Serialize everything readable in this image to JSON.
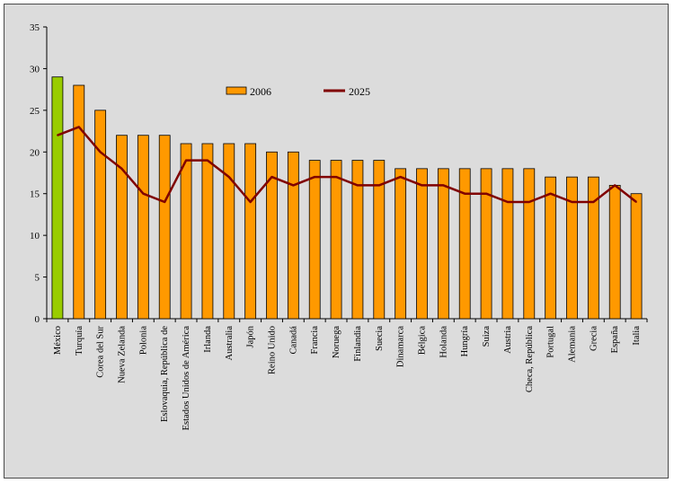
{
  "chart_data": {
    "type": "bar",
    "title": "",
    "xlabel": "",
    "ylabel": "",
    "ylim": [
      0,
      35
    ],
    "ytick_step": 5,
    "grid": false,
    "legend_position": "top-center",
    "categories": [
      "México",
      "Turquía",
      "Corea del Sur",
      "Nueva Zelanda",
      "Polonia",
      "Eslovaquia, República de",
      "Estados Unidos de América",
      "Irlanda",
      "Australia",
      "Japón",
      "Reino Unido",
      "Canadá",
      "Francia",
      "Noruega",
      "Finlandia",
      "Suecia",
      "Dinamarca",
      "Bélgica",
      "Holanda",
      "Hungría",
      "Suiza",
      "Austria",
      "Checa, República",
      "Portugal",
      "Alemania",
      "Grecia",
      "España",
      "Italia"
    ],
    "series": [
      {
        "name": "2006",
        "kind": "bar",
        "color": "#ff9900",
        "highlight_index": 0,
        "highlight_color": "#99cc00",
        "values": [
          29,
          28,
          25,
          22,
          22,
          22,
          21,
          21,
          21,
          21,
          20,
          20,
          19,
          19,
          19,
          19,
          18,
          18,
          18,
          18,
          18,
          18,
          18,
          17,
          17,
          17,
          16,
          15
        ]
      },
      {
        "name": "2025",
        "kind": "line",
        "color": "#800000",
        "values": [
          22,
          23,
          20,
          18,
          15,
          14,
          19,
          19,
          17,
          14,
          17,
          16,
          17,
          17,
          16,
          16,
          17,
          16,
          16,
          15,
          15,
          14,
          14,
          15,
          14,
          14,
          16,
          14
        ]
      }
    ]
  }
}
